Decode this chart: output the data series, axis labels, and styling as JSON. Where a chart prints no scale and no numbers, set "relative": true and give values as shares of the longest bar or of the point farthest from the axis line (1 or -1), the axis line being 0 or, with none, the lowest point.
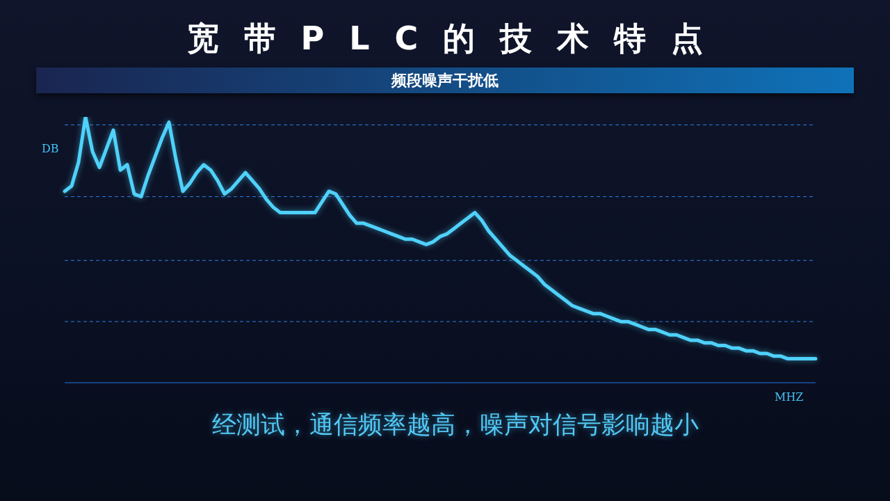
{
  "chart_data": {
    "type": "line",
    "title": "宽带PLC的技术特点",
    "subtitle": "频段噪声干扰低",
    "xlabel": "MHZ",
    "ylabel": "DB",
    "annotations": [
      "经测试，通信频率越高，噪声对信号影响越小"
    ],
    "relative": true,
    "categories": [
      null,
      null,
      null,
      null,
      null,
      null,
      null,
      null,
      null,
      null,
      null,
      null,
      null,
      null,
      null,
      null,
      null,
      null,
      null,
      null,
      null,
      null,
      null,
      null,
      null,
      null,
      null,
      null,
      null,
      null,
      null,
      null,
      null,
      null,
      null,
      null,
      null,
      null,
      null,
      null,
      null,
      null,
      null,
      null,
      null,
      null,
      null,
      null,
      null,
      null,
      null,
      null,
      null,
      null,
      null,
      null,
      null,
      null,
      null,
      null,
      null,
      null,
      null,
      null,
      null,
      null,
      null,
      null,
      null,
      null,
      null,
      null,
      null,
      null,
      null,
      null,
      null,
      null,
      null,
      null,
      null,
      null,
      null,
      null,
      null,
      null,
      null,
      null,
      null,
      null,
      null,
      null,
      null,
      null,
      null,
      null,
      null,
      null,
      null,
      null,
      null,
      null,
      null,
      null,
      null,
      null,
      null,
      null,
      null
    ],
    "values": [
      0.72,
      0.74,
      0.83,
      1.0,
      0.87,
      0.81,
      0.88,
      0.95,
      0.8,
      0.82,
      0.71,
      0.7,
      0.78,
      0.85,
      0.92,
      0.98,
      0.84,
      0.72,
      0.75,
      0.79,
      0.82,
      0.8,
      0.76,
      0.71,
      0.73,
      0.76,
      0.79,
      0.76,
      0.73,
      0.69,
      0.66,
      0.64,
      0.64,
      0.64,
      0.64,
      0.64,
      0.64,
      0.68,
      0.72,
      0.71,
      0.67,
      0.63,
      0.6,
      0.6,
      0.59,
      0.58,
      0.57,
      0.56,
      0.55,
      0.54,
      0.54,
      0.53,
      0.52,
      0.53,
      0.55,
      0.56,
      0.58,
      0.6,
      0.62,
      0.64,
      0.61,
      0.57,
      0.54,
      0.51,
      0.48,
      0.46,
      0.44,
      0.42,
      0.4,
      0.37,
      0.35,
      0.33,
      0.31,
      0.29,
      0.28,
      0.27,
      0.26,
      0.26,
      0.25,
      0.24,
      0.23,
      0.23,
      0.22,
      0.21,
      0.2,
      0.2,
      0.19,
      0.18,
      0.18,
      0.17,
      0.16,
      0.16,
      0.15,
      0.15,
      0.14,
      0.14,
      0.13,
      0.13,
      0.12,
      0.12,
      0.11,
      0.11,
      0.1,
      0.1,
      0.09,
      0.09,
      0.09,
      0.09,
      0.09
    ],
    "color": "#4fd1fa",
    "marker": "none",
    "ref_lines": [
      {
        "axis": "y",
        "value": 0.97,
        "color": "#2f7fe0",
        "line_style": "dashed"
      },
      {
        "axis": "y",
        "value": 0.7,
        "color": "#2f7fe0",
        "line_style": "dashed"
      },
      {
        "axis": "y",
        "value": 0.46,
        "color": "#2f7fe0",
        "line_style": "dashed"
      },
      {
        "axis": "y",
        "value": 0.23,
        "color": "#2f7fe0",
        "line_style": "dashed"
      }
    ]
  }
}
